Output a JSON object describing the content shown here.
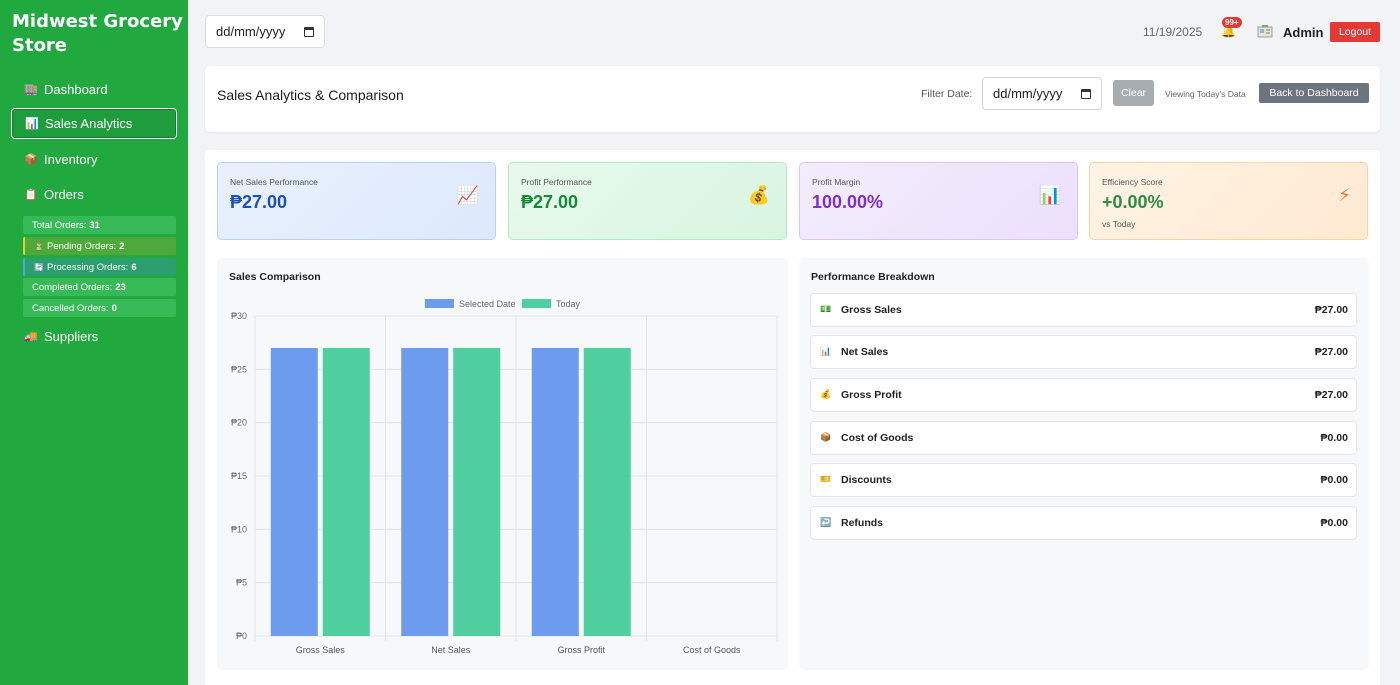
{
  "sidebar": {
    "brand": "Midwest Grocery Store",
    "nav": [
      {
        "label": "Dashboard",
        "icon": "store-icon"
      },
      {
        "label": "Sales Analytics",
        "icon": "bar-chart-icon"
      },
      {
        "label": "Inventory",
        "icon": "package-icon"
      },
      {
        "label": "Orders",
        "icon": "clipboard-icon"
      },
      {
        "label": "Suppliers",
        "icon": "truck-icon"
      }
    ],
    "order_stats": [
      {
        "label": "Total Orders:",
        "value": "31"
      },
      {
        "label": "Pending Orders:",
        "value": "2"
      },
      {
        "label": "Processing Orders:",
        "value": "6"
      },
      {
        "label": "Completed Orders:",
        "value": "23"
      },
      {
        "label": "Cancelled Orders:",
        "value": "0"
      }
    ]
  },
  "topbar": {
    "date_placeholder": "dd/mm/yyyy",
    "current_date": "11/19/2025",
    "notification_count": "99+",
    "user": "Admin",
    "logout_label": "Logout"
  },
  "header": {
    "title": "Sales Analytics & Comparison",
    "filter_label": "Filter Date:",
    "filter_placeholder": "dd/mm/yyyy",
    "clear_label": "Clear",
    "viewing_text": "Viewing Today's Data",
    "back_label": "Back to Dashboard"
  },
  "kpis": [
    {
      "label": "Net Sales Performance",
      "value": "₱27.00",
      "icon": "trend-chart-icon",
      "sub": ""
    },
    {
      "label": "Profit Performance",
      "value": "₱27.00",
      "icon": "money-bag-icon",
      "sub": ""
    },
    {
      "label": "Profit Margin",
      "value": "100.00%",
      "icon": "bar-chart-icon",
      "sub": ""
    },
    {
      "label": "Efficiency Score",
      "value": "+0.00%",
      "icon": "lightning-icon",
      "sub": "vs Today"
    }
  ],
  "chart_title": "Sales Comparison",
  "perf_title": "Performance Breakdown",
  "performance": [
    {
      "label": "Gross Sales",
      "value": "₱27.00",
      "icon": "cash-icon"
    },
    {
      "label": "Net Sales",
      "value": "₱27.00",
      "icon": "bar-chart-icon"
    },
    {
      "label": "Gross Profit",
      "value": "₱27.00",
      "icon": "money-bag-icon"
    },
    {
      "label": "Cost of Goods",
      "value": "₱0.00",
      "icon": "package-icon"
    },
    {
      "label": "Discounts",
      "value": "₱0.00",
      "icon": "ticket-icon"
    },
    {
      "label": "Refunds",
      "value": "₱0.00",
      "icon": "return-arrow-icon"
    }
  ],
  "colors": {
    "sidebar": "#21a940",
    "selected_date": "#6d9cee",
    "today": "#4fcfa0"
  },
  "chart_data": {
    "type": "bar",
    "categories": [
      "Gross Sales",
      "Net Sales",
      "Gross Profit",
      "Cost of Goods"
    ],
    "series": [
      {
        "name": "Selected Date",
        "values": [
          27,
          27,
          27,
          0
        ]
      },
      {
        "name": "Today",
        "values": [
          27,
          27,
          27,
          0
        ]
      }
    ],
    "ylim": [
      0,
      30
    ],
    "yticks": [
      "₱0",
      "₱5",
      "₱10",
      "₱15",
      "₱20",
      "₱25",
      "₱30"
    ],
    "grid": true,
    "legend": "top-center"
  }
}
